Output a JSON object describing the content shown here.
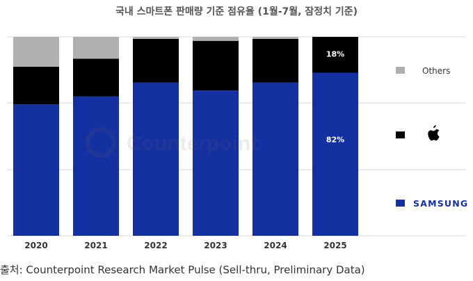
{
  "chart_data": {
    "type": "bar",
    "stacked": true,
    "title": "국내 스마트폰 판매량 기준 점유율 (1월-7월, 잠정치 기준)",
    "categories": [
      "2020",
      "2021",
      "2022",
      "2023",
      "2024",
      "2025"
    ],
    "series": [
      {
        "name": "SAMSUNG",
        "color": "#1530a0",
        "values": [
          66,
          70,
          77,
          73,
          77,
          82
        ]
      },
      {
        "name": "",
        "legend_icon": "apple-logo-icon",
        "color": "#000000",
        "values": [
          19,
          19,
          22,
          25,
          22,
          18
        ]
      },
      {
        "name": "Others",
        "color": "#b0b0b0",
        "values": [
          15,
          11,
          1,
          2,
          1,
          0
        ]
      }
    ],
    "data_labels": [
      {
        "category": "2025",
        "series": "SAMSUNG",
        "text": "82%"
      },
      {
        "category": "2025",
        "series": "Apple",
        "text": "18%"
      }
    ],
    "ylim": [
      0,
      100
    ],
    "grid": "horizontal",
    "legend": "right"
  },
  "watermark": "Counterpoint",
  "source": "출처: Counterpoint Research Market Pulse (Sell-thru, Preliminary Data)"
}
